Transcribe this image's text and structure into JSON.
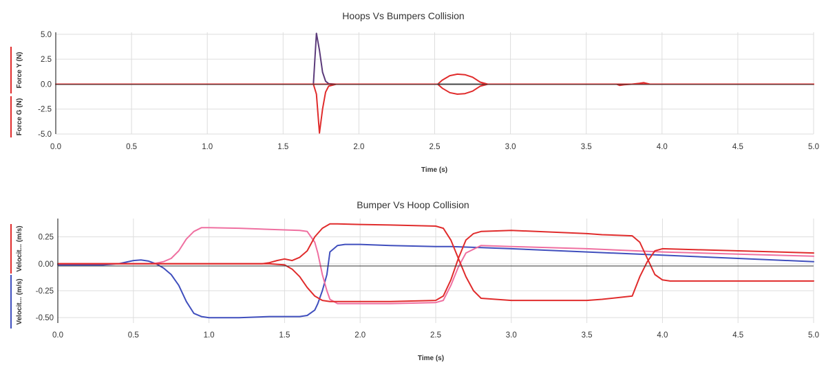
{
  "chart_data": [
    {
      "type": "line",
      "title": "Hoops Vs Bumpers Collision",
      "xlabel": "Time (s)",
      "ylabels": [
        {
          "text": "Force Y (N)",
          "color": "#e02b2b"
        },
        {
          "text": "Force G (N)",
          "color": "#e02b2b"
        }
      ],
      "xlim": [
        0,
        5
      ],
      "ylim": [
        -5,
        5.2
      ],
      "xticks": [
        "0.0",
        "0.5",
        "1.0",
        "1.5",
        "2.0",
        "2.5",
        "3.0",
        "3.5",
        "4.0",
        "4.5",
        "5.0"
      ],
      "yticks": [
        "5.0",
        "2.5",
        "0.0",
        "-2.5",
        "-5.0"
      ],
      "grid": true,
      "series": [
        {
          "color": "#5b3a7a",
          "x": [
            0,
            1.7,
            1.72,
            1.74,
            1.76,
            1.78,
            1.8,
            1.85,
            5.0
          ],
          "y": [
            0,
            0,
            5.1,
            3.4,
            1.2,
            0.3,
            0.05,
            0,
            0
          ]
        },
        {
          "color": "#e02b2b",
          "x": [
            0,
            1.7,
            1.72,
            1.74,
            1.76,
            1.78,
            1.8,
            1.85,
            3.7,
            3.72,
            3.75,
            3.8,
            3.85,
            3.88,
            3.92,
            5.0
          ],
          "y": [
            0,
            0,
            -1.0,
            -4.9,
            -2.5,
            -0.8,
            -0.2,
            0,
            0,
            -0.12,
            -0.05,
            0,
            0.08,
            0.15,
            0,
            0
          ]
        },
        {
          "color": "#e02b2b",
          "x": [
            0,
            2.52,
            2.55,
            2.6,
            2.65,
            2.7,
            2.75,
            2.8,
            2.85,
            5.0
          ],
          "y": [
            0,
            0,
            0.4,
            0.85,
            1.0,
            0.95,
            0.7,
            0.2,
            0,
            0
          ]
        },
        {
          "color": "#e02b2b",
          "x": [
            0,
            2.52,
            2.55,
            2.6,
            2.65,
            2.7,
            2.75,
            2.8,
            2.85,
            5.0
          ],
          "y": [
            0,
            0,
            -0.4,
            -0.85,
            -1.0,
            -0.95,
            -0.7,
            -0.2,
            0,
            0
          ]
        },
        {
          "color": "#555555",
          "x": [
            2.52,
            2.8
          ],
          "y": [
            0,
            0
          ]
        }
      ]
    },
    {
      "type": "line",
      "title": "Bumper Vs Hoop Collision",
      "xlabel": "Time (s)",
      "ylabels": [
        {
          "text": "Velocit... (m/s)",
          "color": "#3f4ebd"
        },
        {
          "text": "Velocit... (m/s)",
          "color": "#e02b2b"
        }
      ],
      "xlim": [
        0,
        5
      ],
      "ylim": [
        -0.55,
        0.42
      ],
      "xticks": [
        "0.0",
        "0.5",
        "1.0",
        "1.5",
        "2.0",
        "2.5",
        "3.0",
        "3.5",
        "4.0",
        "4.5",
        "5.0"
      ],
      "yticks": [
        "0.25",
        "0.00",
        "-0.25",
        "-0.50"
      ],
      "grid": true,
      "series": [
        {
          "color": "#3f4ebd",
          "x": [
            0,
            0.3,
            0.4,
            0.45,
            0.5,
            0.55,
            0.6,
            0.65,
            0.7,
            0.75,
            0.8,
            0.85,
            0.9,
            0.95,
            1.0,
            1.2,
            1.4,
            1.6,
            1.65,
            1.7,
            1.72,
            1.75,
            1.78,
            1.8,
            1.85,
            1.9,
            2.0,
            2.2,
            2.5,
            2.6,
            2.8,
            3.0,
            3.5,
            4.0,
            4.5,
            5.0
          ],
          "y": [
            -0.01,
            -0.01,
            0.0,
            0.015,
            0.03,
            0.035,
            0.025,
            0.0,
            -0.04,
            -0.1,
            -0.2,
            -0.35,
            -0.46,
            -0.49,
            -0.5,
            -0.5,
            -0.49,
            -0.49,
            -0.48,
            -0.43,
            -0.37,
            -0.25,
            -0.1,
            0.11,
            0.17,
            0.18,
            0.18,
            0.17,
            0.16,
            0.16,
            0.15,
            0.14,
            0.11,
            0.08,
            0.05,
            0.02
          ]
        },
        {
          "color": "#ef6fa0",
          "x": [
            0,
            0.6,
            0.65,
            0.7,
            0.75,
            0.8,
            0.85,
            0.9,
            0.95,
            1.0,
            1.2,
            1.4,
            1.6,
            1.65,
            1.7,
            1.72,
            1.75,
            1.78,
            1.8,
            1.85,
            1.9,
            2.0,
            2.2,
            2.5,
            2.55,
            2.6,
            2.65,
            2.7,
            2.8,
            3.0,
            3.5,
            4.0,
            4.5,
            5.0
          ],
          "y": [
            0,
            0,
            0.005,
            0.02,
            0.05,
            0.12,
            0.23,
            0.3,
            0.335,
            0.335,
            0.33,
            0.32,
            0.31,
            0.3,
            0.2,
            0.1,
            -0.1,
            -0.25,
            -0.33,
            -0.37,
            -0.37,
            -0.37,
            -0.37,
            -0.36,
            -0.34,
            -0.2,
            -0.03,
            0.1,
            0.17,
            0.16,
            0.14,
            0.11,
            0.09,
            0.07
          ]
        },
        {
          "color": "#e02b2b",
          "x": [
            0,
            1.35,
            1.4,
            1.45,
            1.5,
            1.55,
            1.6,
            1.65,
            1.7,
            1.75,
            1.8,
            1.85,
            2.0,
            2.2,
            2.5,
            2.55,
            2.6,
            2.65,
            2.7,
            2.75,
            2.8,
            3.0,
            3.5,
            3.6,
            3.8,
            3.85,
            3.9,
            3.95,
            4.0,
            5.0
          ],
          "y": [
            0,
            0,
            0.01,
            0.03,
            0.045,
            0.03,
            0.06,
            0.12,
            0.25,
            0.33,
            0.37,
            0.37,
            0.365,
            0.36,
            0.35,
            0.33,
            0.22,
            0.05,
            -0.12,
            -0.25,
            -0.32,
            -0.34,
            -0.34,
            -0.33,
            -0.3,
            -0.12,
            0.02,
            0.12,
            0.14,
            0.1
          ]
        },
        {
          "color": "#e02b2b",
          "x": [
            0,
            1.4,
            1.5,
            1.55,
            1.6,
            1.65,
            1.7,
            1.75,
            1.8,
            1.85,
            2.0,
            2.2,
            2.5,
            2.55,
            2.6,
            2.65,
            2.7,
            2.75,
            2.8,
            3.0,
            3.5,
            3.6,
            3.8,
            3.85,
            3.9,
            3.95,
            4.0,
            4.05,
            5.0
          ],
          "y": [
            0,
            0,
            -0.01,
            -0.05,
            -0.12,
            -0.22,
            -0.3,
            -0.34,
            -0.35,
            -0.35,
            -0.35,
            -0.35,
            -0.34,
            -0.3,
            -0.15,
            0.05,
            0.22,
            0.28,
            0.3,
            0.31,
            0.28,
            0.27,
            0.26,
            0.2,
            0.05,
            -0.1,
            -0.15,
            -0.16,
            -0.16
          ]
        }
      ]
    }
  ]
}
